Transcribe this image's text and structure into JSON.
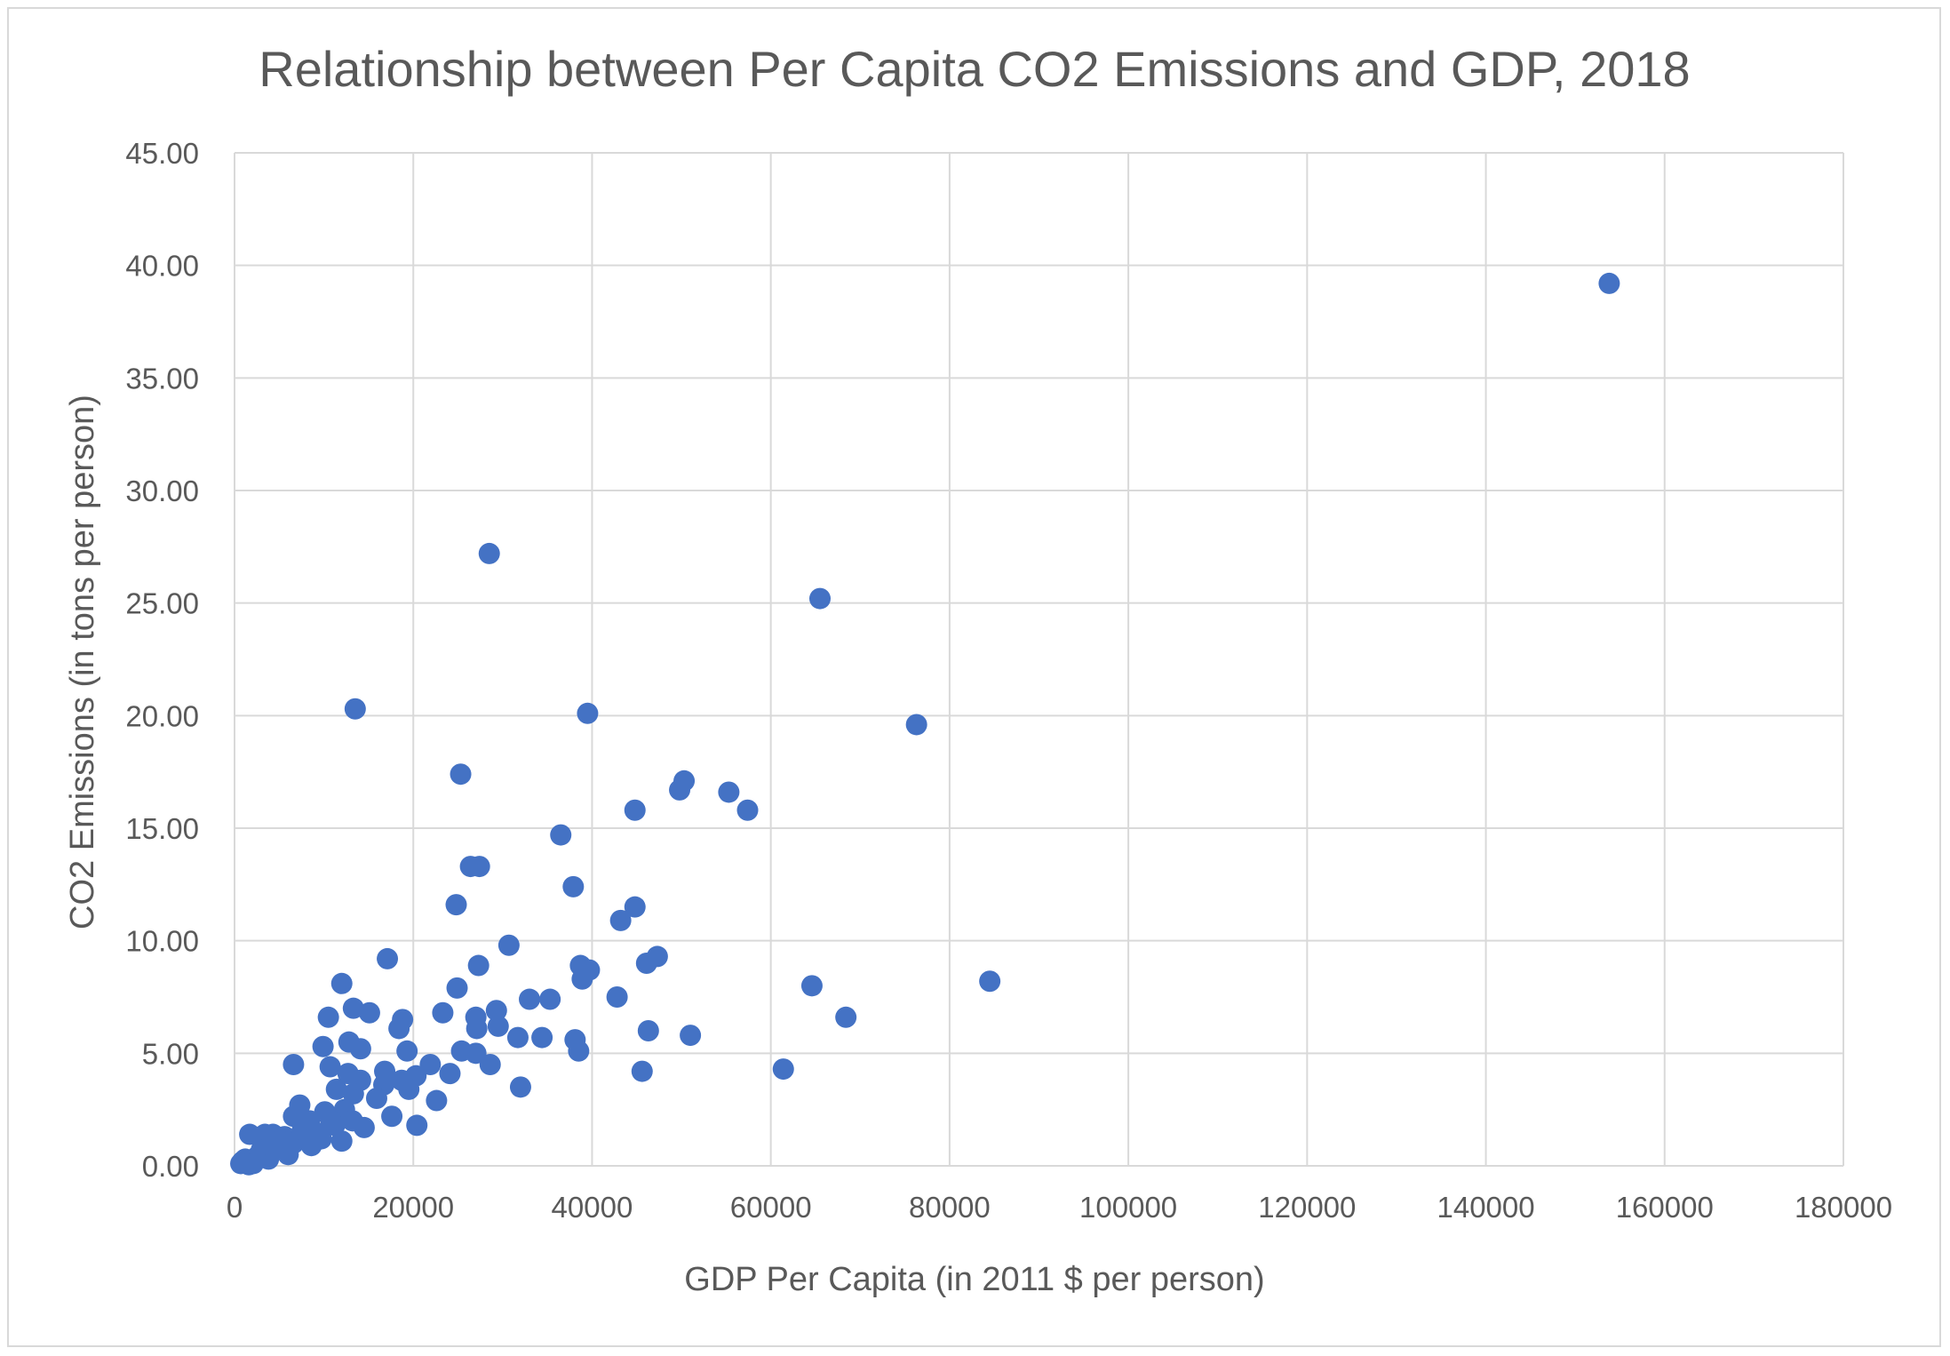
{
  "chart_data": {
    "type": "scatter",
    "title": "Relationship between Per Capita CO2 Emissions and GDP, 2018",
    "xlabel": "GDP Per Capita (in 2011 $ per person)",
    "ylabel": "CO2 Emissions (in tons per person)",
    "xlim": [
      0,
      180000
    ],
    "ylim": [
      0,
      45
    ],
    "x_ticks": [
      0,
      20000,
      40000,
      60000,
      80000,
      100000,
      120000,
      140000,
      160000,
      180000
    ],
    "x_tick_labels": [
      "0",
      "20000",
      "40000",
      "60000",
      "80000",
      "100000",
      "120000",
      "140000",
      "160000",
      "180000"
    ],
    "y_ticks": [
      0,
      5,
      10,
      15,
      20,
      25,
      30,
      35,
      40,
      45
    ],
    "y_tick_labels": [
      "0.00",
      "5.00",
      "10.00",
      "15.00",
      "20.00",
      "25.00",
      "30.00",
      "35.00",
      "40.00",
      "45.00"
    ],
    "grid": "on",
    "legend": "none",
    "marker_color": "#4472C4",
    "series": [
      {
        "points": [
          [
            153800,
            39.2
          ],
          [
            28500,
            27.2
          ],
          [
            65500,
            25.2
          ],
          [
            13500,
            20.3
          ],
          [
            39500,
            20.1
          ],
          [
            76300,
            19.6
          ],
          [
            25300,
            17.4
          ],
          [
            50300,
            17.1
          ],
          [
            49800,
            16.7
          ],
          [
            55300,
            16.6
          ],
          [
            44800,
            15.8
          ],
          [
            57400,
            15.8
          ],
          [
            36500,
            14.7
          ],
          [
            26400,
            13.3
          ],
          [
            27400,
            13.3
          ],
          [
            37900,
            12.4
          ],
          [
            24800,
            11.6
          ],
          [
            44800,
            11.5
          ],
          [
            43200,
            10.9
          ],
          [
            30700,
            9.8
          ],
          [
            47300,
            9.3
          ],
          [
            17100,
            9.2
          ],
          [
            46100,
            9.0
          ],
          [
            38700,
            8.9
          ],
          [
            27300,
            8.9
          ],
          [
            39700,
            8.7
          ],
          [
            38900,
            8.3
          ],
          [
            84500,
            8.2
          ],
          [
            12000,
            8.1
          ],
          [
            64600,
            8.0
          ],
          [
            24900,
            7.9
          ],
          [
            42800,
            7.5
          ],
          [
            33000,
            7.4
          ],
          [
            35300,
            7.4
          ],
          [
            13300,
            7.0
          ],
          [
            29300,
            6.9
          ],
          [
            23300,
            6.8
          ],
          [
            15100,
            6.8
          ],
          [
            10500,
            6.6
          ],
          [
            68400,
            6.6
          ],
          [
            27000,
            6.6
          ],
          [
            18800,
            6.5
          ],
          [
            29500,
            6.2
          ],
          [
            18400,
            6.1
          ],
          [
            27100,
            6.1
          ],
          [
            46300,
            6.0
          ],
          [
            51000,
            5.8
          ],
          [
            31700,
            5.7
          ],
          [
            34400,
            5.7
          ],
          [
            38100,
            5.6
          ],
          [
            12800,
            5.5
          ],
          [
            9900,
            5.3
          ],
          [
            14100,
            5.2
          ],
          [
            25400,
            5.1
          ],
          [
            19300,
            5.1
          ],
          [
            38500,
            5.1
          ],
          [
            27000,
            5.0
          ],
          [
            28600,
            4.5
          ],
          [
            6600,
            4.5
          ],
          [
            21900,
            4.5
          ],
          [
            10700,
            4.4
          ],
          [
            61400,
            4.3
          ],
          [
            45600,
            4.2
          ],
          [
            16800,
            4.2
          ],
          [
            24100,
            4.1
          ],
          [
            12700,
            4.1
          ],
          [
            20300,
            4.0
          ],
          [
            14100,
            3.8
          ],
          [
            18700,
            3.8
          ],
          [
            16700,
            3.6
          ],
          [
            32000,
            3.5
          ],
          [
            11400,
            3.4
          ],
          [
            19500,
            3.4
          ],
          [
            13300,
            3.2
          ],
          [
            15900,
            3.0
          ],
          [
            22600,
            2.9
          ],
          [
            7300,
            2.7
          ],
          [
            12300,
            2.5
          ],
          [
            17600,
            2.2
          ],
          [
            13200,
            2.0
          ],
          [
            10800,
            2.0
          ],
          [
            8400,
            2.0
          ],
          [
            6600,
            2.2
          ],
          [
            14500,
            1.7
          ],
          [
            20400,
            1.8
          ],
          [
            9000,
            1.5
          ],
          [
            7900,
            1.4
          ],
          [
            5600,
            1.3
          ],
          [
            4300,
            1.4
          ],
          [
            1700,
            1.4
          ],
          [
            3400,
            1.4
          ],
          [
            12000,
            1.1
          ],
          [
            9700,
            1.2
          ],
          [
            6600,
            1.0
          ],
          [
            8600,
            0.9
          ],
          [
            4700,
            0.8
          ],
          [
            3000,
            0.7
          ],
          [
            6000,
            0.5
          ],
          [
            2500,
            0.4
          ],
          [
            1200,
            0.3
          ],
          [
            3800,
            0.3
          ],
          [
            900,
            0.2
          ],
          [
            2100,
            0.1
          ],
          [
            700,
            0.1
          ],
          [
            1600,
            0.05
          ],
          [
            5200,
            1.1
          ],
          [
            7600,
            1.6
          ],
          [
            11200,
            1.8
          ],
          [
            10100,
            2.4
          ],
          [
            4000,
            0.9
          ]
        ]
      }
    ]
  }
}
